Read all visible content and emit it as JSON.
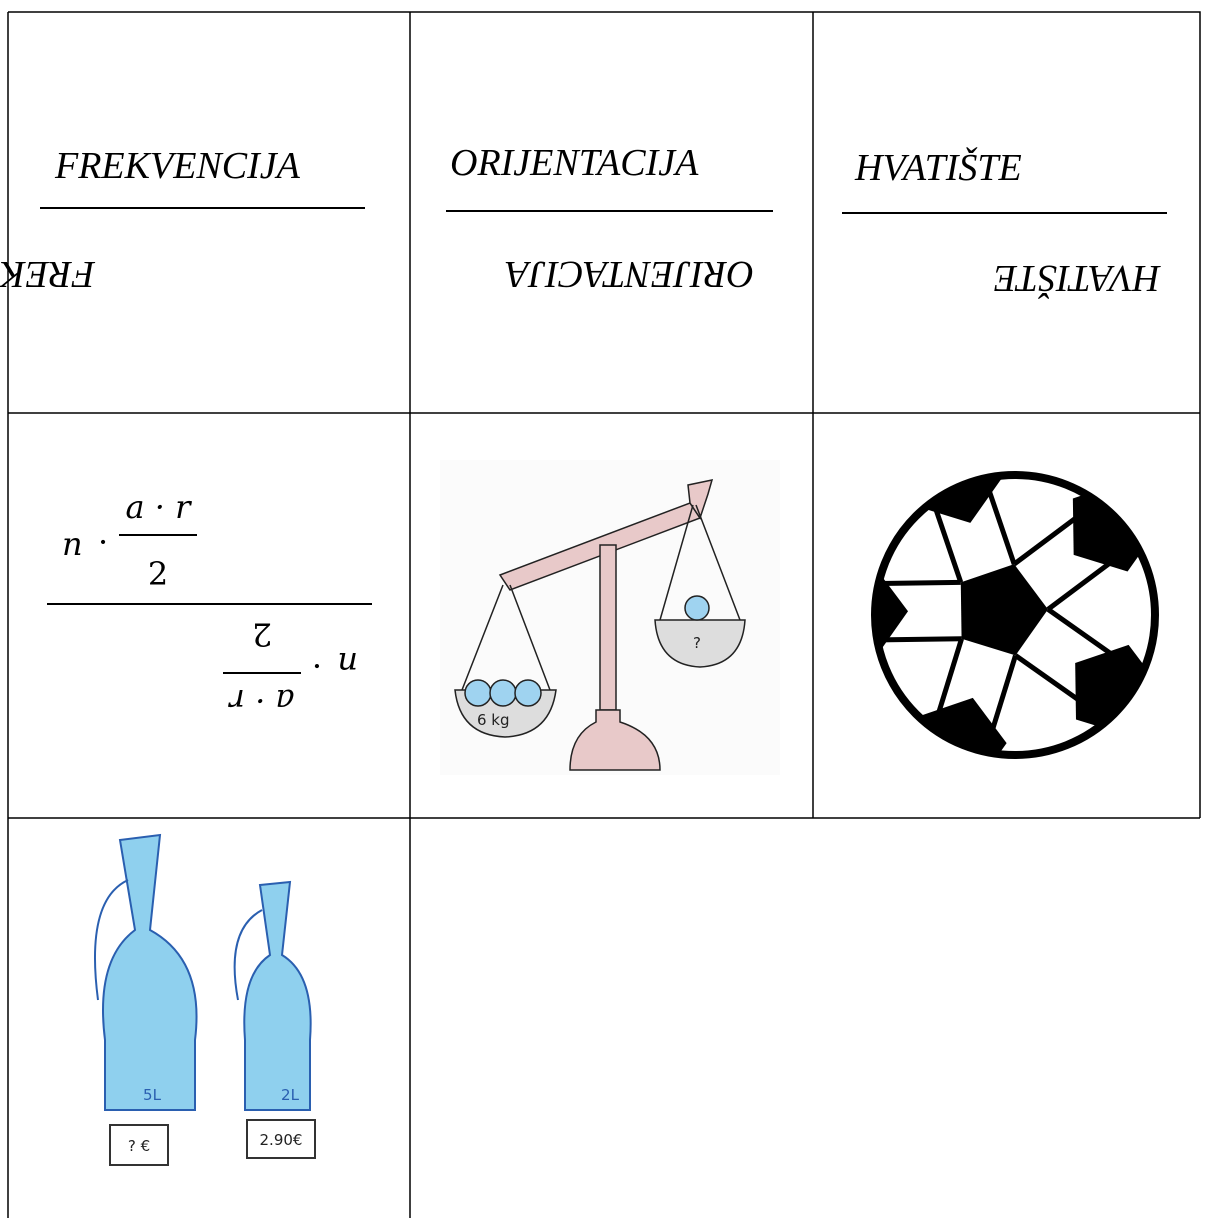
{
  "cards": {
    "words": [
      "FREKVENCIJA",
      "ORIJENTACIJA",
      "HVATIŠTE"
    ],
    "formula": {
      "factor": "n",
      "operator": "·",
      "numerator": "a · r",
      "denominator": "2"
    },
    "scale": {
      "left_label": "6 kg",
      "right_label": "?"
    },
    "bottles": {
      "big_volume": "5L",
      "small_volume": "2L",
      "big_price": "? €",
      "small_price": "2.90€"
    }
  }
}
